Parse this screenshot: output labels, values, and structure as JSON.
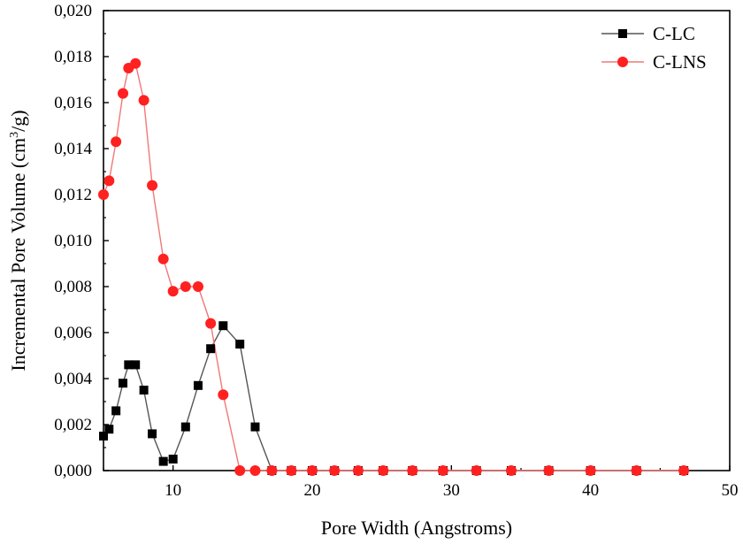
{
  "chart_data": {
    "type": "line",
    "xlabel": "Pore Width (Angstroms)",
    "ylabel": "Incremental Pore Volume (cm³/g)",
    "ylabel_parts": {
      "before": "Incremental Pore Volume (cm",
      "sup": "3",
      "after": "/g)"
    },
    "xlim": [
      5,
      50
    ],
    "ylim": [
      0,
      0.02
    ],
    "x_ticks": [
      10,
      20,
      30,
      40,
      50
    ],
    "x_tick_labels": [
      "10",
      "20",
      "30",
      "40",
      "50"
    ],
    "y_ticks": [
      0,
      0.002,
      0.004,
      0.006,
      0.008,
      0.01,
      0.012,
      0.014,
      0.016,
      0.018,
      0.02
    ],
    "y_tick_labels": [
      "0,000",
      "0,002",
      "0,004",
      "0,006",
      "0,008",
      "0,010",
      "0,012",
      "0,014",
      "0,016",
      "0,018",
      "0,020"
    ],
    "grid": false,
    "legend_position": "top-right",
    "series": [
      {
        "name": "C-LC",
        "color": "#555555",
        "marker": "square",
        "marker_color": "#000000",
        "x": [
          5.0,
          5.4,
          5.9,
          6.4,
          6.8,
          7.3,
          7.9,
          8.5,
          9.3,
          10.0,
          10.9,
          11.8,
          12.7,
          13.6,
          14.8,
          15.9,
          17.1,
          18.5,
          20.0,
          21.6,
          23.3,
          25.1,
          27.2,
          29.4,
          31.8,
          34.3,
          37.0,
          40.0,
          43.3,
          46.7
        ],
        "y": [
          0.0015,
          0.0018,
          0.0026,
          0.0038,
          0.0046,
          0.0046,
          0.0035,
          0.0016,
          0.0004,
          0.0005,
          0.0019,
          0.0037,
          0.0053,
          0.0063,
          0.0055,
          0.0019,
          0.0,
          0.0,
          0.0,
          0.0,
          0.0,
          0.0,
          0.0,
          0.0,
          0.0,
          0.0,
          0.0,
          0.0,
          0.0,
          0.0
        ]
      },
      {
        "name": "C-LNS",
        "color": "#f07878",
        "marker": "circle",
        "marker_color": "#ff2020",
        "x": [
          5.0,
          5.4,
          5.9,
          6.4,
          6.8,
          7.3,
          7.9,
          8.5,
          9.3,
          10.0,
          10.9,
          11.8,
          12.7,
          13.6,
          14.8,
          15.9,
          17.1,
          18.5,
          20.0,
          21.6,
          23.3,
          25.1,
          27.2,
          29.4,
          31.8,
          34.3,
          37.0,
          40.0,
          43.3,
          46.7
        ],
        "y": [
          0.012,
          0.0126,
          0.0143,
          0.0164,
          0.0175,
          0.0177,
          0.0161,
          0.0124,
          0.0092,
          0.0078,
          0.008,
          0.008,
          0.0064,
          0.0033,
          0.0,
          0.0,
          0.0,
          0.0,
          0.0,
          0.0,
          0.0,
          0.0,
          0.0,
          0.0,
          0.0,
          0.0,
          0.0,
          0.0,
          0.0,
          0.0
        ]
      }
    ]
  }
}
